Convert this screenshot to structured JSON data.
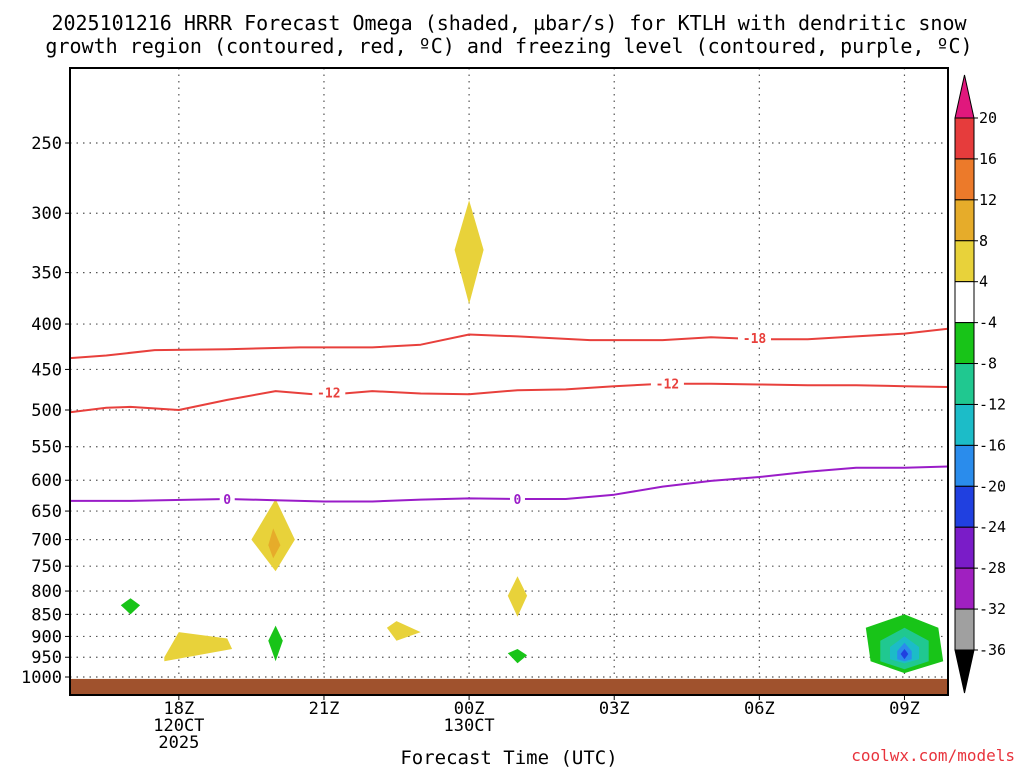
{
  "chart_data": {
    "type": "contour",
    "title_line1": "2025101216 HRRR Forecast Omega (shaded, µbar/s) for KTLH with dendritic snow",
    "title_line2": "growth region (contoured, red, ºC) and freezing level (contoured, purple, ºC)",
    "xlabel": "Forecast Time (UTC)",
    "credit": "coolwx.com/models",
    "y_ticks": [
      "250",
      "300",
      "350",
      "400",
      "450",
      "500",
      "550",
      "600",
      "650",
      "700",
      "750",
      "800",
      "850",
      "900",
      "950",
      "1000"
    ],
    "y_scale": "log-pressure",
    "x_range_hours": [
      15.75,
      33.9
    ],
    "x_ticks": [
      {
        "hour": 18,
        "lines": [
          "18Z",
          "120CT",
          "2025"
        ]
      },
      {
        "hour": 21,
        "lines": [
          "21Z"
        ]
      },
      {
        "hour": 24,
        "lines": [
          "00Z",
          "130CT"
        ]
      },
      {
        "hour": 27,
        "lines": [
          "03Z"
        ]
      },
      {
        "hour": 30,
        "lines": [
          "06Z"
        ]
      },
      {
        "hour": 33,
        "lines": [
          "09Z"
        ]
      }
    ],
    "colorbar": {
      "labels": [
        "20",
        "16",
        "12",
        "8",
        "4",
        "-4",
        "-8",
        "-12",
        "-16",
        "-20",
        "-24",
        "-28",
        "-32",
        "-36"
      ],
      "colors": [
        "#e0187d",
        "#e63c3c",
        "#ec7a2a",
        "#e6ac2a",
        "#e8d23a",
        "#ffffff",
        "#18c418",
        "#20c890",
        "#1cbcc8",
        "#2a8cec",
        "#2040e0",
        "#7a1cc8",
        "#a020c0",
        "#a0a0a0",
        "#000000"
      ]
    },
    "contours": [
      {
        "name": "-18 C",
        "label": "-18",
        "color": "#e8403c",
        "points": [
          [
            15.75,
            437
          ],
          [
            16.5,
            434
          ],
          [
            17.5,
            428
          ],
          [
            19,
            427
          ],
          [
            20.5,
            425
          ],
          [
            22,
            425
          ],
          [
            23,
            422
          ],
          [
            24,
            411
          ],
          [
            25,
            413
          ],
          [
            26.5,
            417
          ],
          [
            28,
            417
          ],
          [
            29,
            414
          ],
          [
            30,
            416
          ],
          [
            31,
            416
          ],
          [
            32,
            413
          ],
          [
            33,
            410
          ],
          [
            33.9,
            405
          ]
        ]
      },
      {
        "name": "-12 C",
        "label": "-12",
        "color": "#e8403c",
        "points": [
          [
            15.75,
            503
          ],
          [
            16.5,
            497
          ],
          [
            17,
            496
          ],
          [
            18,
            500
          ],
          [
            19,
            487
          ],
          [
            20,
            476
          ],
          [
            21,
            481
          ],
          [
            22,
            476
          ],
          [
            23,
            479
          ],
          [
            24,
            480
          ],
          [
            25,
            475
          ],
          [
            26,
            474
          ],
          [
            27,
            470
          ],
          [
            28,
            467
          ],
          [
            29,
            467
          ],
          [
            30,
            468
          ],
          [
            31,
            469
          ],
          [
            32,
            469
          ],
          [
            33,
            470
          ],
          [
            33.9,
            471
          ]
        ]
      },
      {
        "name": "0 C freezing level",
        "label": "0",
        "color": "#9a1cc8",
        "points": [
          [
            15.75,
            633
          ],
          [
            17,
            633
          ],
          [
            19,
            630
          ],
          [
            20,
            632
          ],
          [
            21,
            634
          ],
          [
            22,
            634
          ],
          [
            23,
            631
          ],
          [
            24,
            629
          ],
          [
            25,
            630
          ],
          [
            26,
            630
          ],
          [
            27,
            623
          ],
          [
            28,
            610
          ],
          [
            29,
            601
          ],
          [
            30,
            595
          ],
          [
            31,
            587
          ],
          [
            32,
            581
          ],
          [
            33,
            581
          ],
          [
            33.9,
            579
          ]
        ]
      }
    ],
    "contour_labels": [
      {
        "label": "-18",
        "hour": 29.9,
        "pressure": 415,
        "color": "#e8403c"
      },
      {
        "label": "-12",
        "hour": 21.1,
        "pressure": 478,
        "color": "#e8403c"
      },
      {
        "label": "-12",
        "hour": 28.1,
        "pressure": 467,
        "color": "#e8403c"
      },
      {
        "label": "0",
        "hour": 19.0,
        "pressure": 630,
        "color": "#9a1cc8"
      },
      {
        "label": "0",
        "hour": 25.0,
        "pressure": 630,
        "color": "#9a1cc8"
      }
    ],
    "omega_regions": [
      {
        "name": "omega 4-8 aloft 00Z",
        "color": "#e8d23a",
        "points": [
          [
            24,
            290
          ],
          [
            24.3,
            330
          ],
          [
            24,
            380
          ],
          [
            23.7,
            330
          ]
        ]
      },
      {
        "name": "omega 4-8 near 20Z",
        "color": "#e8d23a",
        "points": [
          [
            20,
            630
          ],
          [
            20.4,
            700
          ],
          [
            20,
            760
          ],
          [
            19.5,
            700
          ]
        ]
      },
      {
        "name": "omega 8-12 near 20Z",
        "color": "#e6ac2a",
        "points": [
          [
            19.95,
            680
          ],
          [
            20.1,
            710
          ],
          [
            19.95,
            735
          ],
          [
            19.85,
            710
          ]
        ]
      },
      {
        "name": "omega 4-8 01Z",
        "color": "#e8d23a",
        "points": [
          [
            25,
            770
          ],
          [
            25.2,
            810
          ],
          [
            25,
            855
          ],
          [
            24.8,
            810
          ]
        ]
      },
      {
        "name": "omega 4-8 2230Z",
        "color": "#e8d23a",
        "points": [
          [
            22.5,
            865
          ],
          [
            23,
            890
          ],
          [
            22.5,
            910
          ],
          [
            22.3,
            880
          ]
        ]
      },
      {
        "name": "omega 4-8 18Z",
        "color": "#e8d23a",
        "points": [
          [
            17.7,
            950
          ],
          [
            18,
            890
          ],
          [
            19,
            905
          ],
          [
            19.1,
            930
          ],
          [
            17.7,
            960
          ]
        ]
      },
      {
        "name": "omega -4 to -8 17Z",
        "color": "#18c418",
        "points": [
          [
            17,
            815
          ],
          [
            17.2,
            830
          ],
          [
            17,
            850
          ],
          [
            16.8,
            830
          ]
        ]
      },
      {
        "name": "omega -4 to -8 20Z",
        "color": "#18c418",
        "points": [
          [
            20,
            875
          ],
          [
            20.15,
            910
          ],
          [
            20,
            960
          ],
          [
            19.85,
            910
          ]
        ]
      },
      {
        "name": "omega -4 to -8 01Z",
        "color": "#18c418",
        "points": [
          [
            24.8,
            940
          ],
          [
            25,
            930
          ],
          [
            25.2,
            945
          ],
          [
            25,
            965
          ]
        ]
      },
      {
        "name": "omega -4 to -8 09Z",
        "color": "#18c418",
        "points": [
          [
            33,
            850
          ],
          [
            33.7,
            880
          ],
          [
            33.8,
            960
          ],
          [
            33,
            990
          ],
          [
            32.3,
            960
          ],
          [
            32.2,
            880
          ]
        ]
      },
      {
        "name": "omega -8 to -12 09Z",
        "color": "#20c890",
        "points": [
          [
            33,
            880
          ],
          [
            33.5,
            910
          ],
          [
            33.5,
            960
          ],
          [
            33,
            980
          ],
          [
            32.5,
            960
          ],
          [
            32.5,
            910
          ]
        ]
      },
      {
        "name": "omega -12 to -16 09Z",
        "color": "#1cbcc8",
        "points": [
          [
            33,
            900
          ],
          [
            33.3,
            925
          ],
          [
            33.3,
            955
          ],
          [
            33,
            965
          ],
          [
            32.7,
            955
          ],
          [
            32.7,
            925
          ]
        ]
      },
      {
        "name": "omega -16 to -20 09Z",
        "color": "#2a8cec",
        "points": [
          [
            33,
            915
          ],
          [
            33.15,
            935
          ],
          [
            33.15,
            955
          ],
          [
            33,
            960
          ],
          [
            32.85,
            955
          ],
          [
            32.85,
            935
          ]
        ]
      },
      {
        "name": "omega -20 to -24 09Z",
        "color": "#2040e0",
        "points": [
          [
            33,
            930
          ],
          [
            33.08,
            942
          ],
          [
            33,
            955
          ],
          [
            32.92,
            942
          ]
        ]
      }
    ],
    "ground": {
      "name": "terrain",
      "color": "#a0522d",
      "top_pressure": 1005
    }
  }
}
